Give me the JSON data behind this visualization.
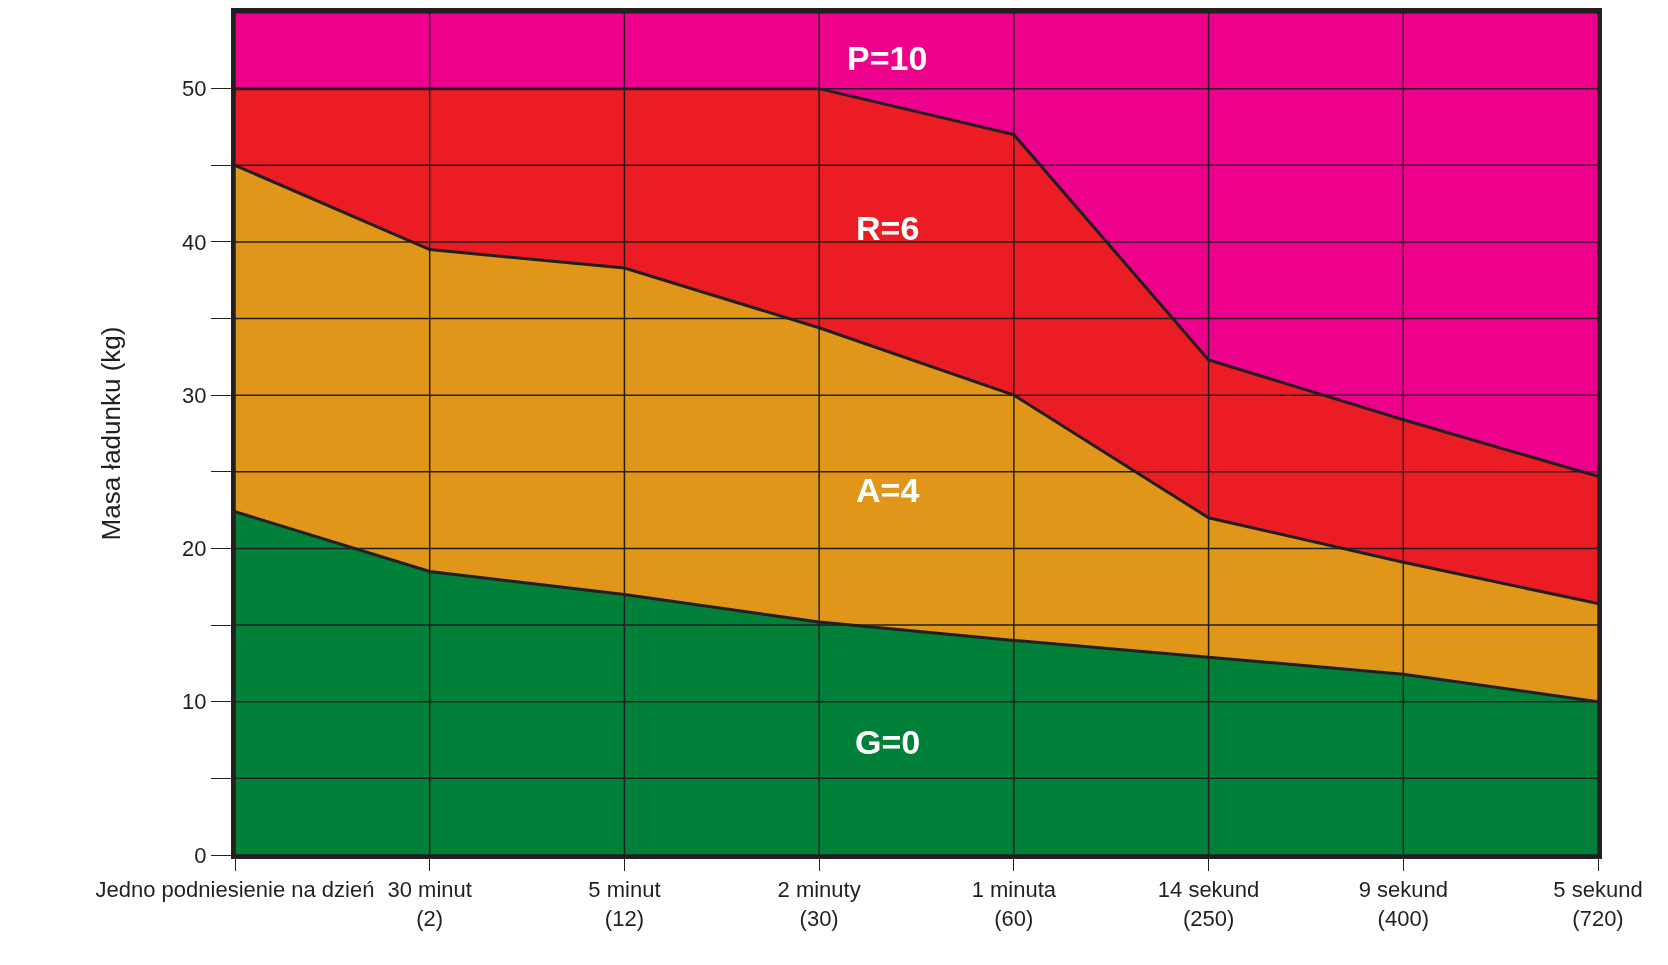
{
  "chart_data": {
    "type": "area",
    "stacked": true,
    "xlabel": null,
    "ylabel": "Masa ładunku (kg)",
    "categories": [
      "Jedno podniesienie na dzień",
      "30 minut\n(2)",
      "5 minut\n(12)",
      "2 minuty\n(30)",
      "1 minuta\n(60)",
      "14 sekund\n(250)",
      "9 sekund\n(400)",
      "5 sekund\n(720)"
    ],
    "series": [
      {
        "name": "G=0",
        "color": "#008038",
        "values": [
          22.4,
          18.5,
          17.0,
          15.2,
          14.0,
          12.9,
          11.8,
          10.0
        ]
      },
      {
        "name": "A=4",
        "color": "#e09618",
        "values": [
          22.6,
          21.0,
          21.3,
          19.2,
          16.0,
          9.1,
          7.3,
          6.4
        ]
      },
      {
        "name": "R=6",
        "color": "#ec1c24",
        "values": [
          5.0,
          10.5,
          11.7,
          15.6,
          17.0,
          10.3,
          9.3,
          8.3
        ]
      },
      {
        "name": "P=10",
        "color": "#ec008c",
        "values": [
          5.0,
          5.0,
          5.0,
          5.0,
          8.0,
          22.7,
          26.6,
          30.3
        ]
      }
    ],
    "ylim": [
      0,
      55
    ],
    "yticks": [
      0,
      {
        "value": 5,
        "label": null
      },
      10,
      {
        "value": 15,
        "label": null
      },
      20,
      {
        "value": 25,
        "label": null
      },
      30,
      {
        "value": 35,
        "label": null
      },
      40,
      {
        "value": 45,
        "label": null
      },
      50
    ],
    "grid": true,
    "legend": false,
    "marker": "none",
    "line_style": "solid"
  }
}
